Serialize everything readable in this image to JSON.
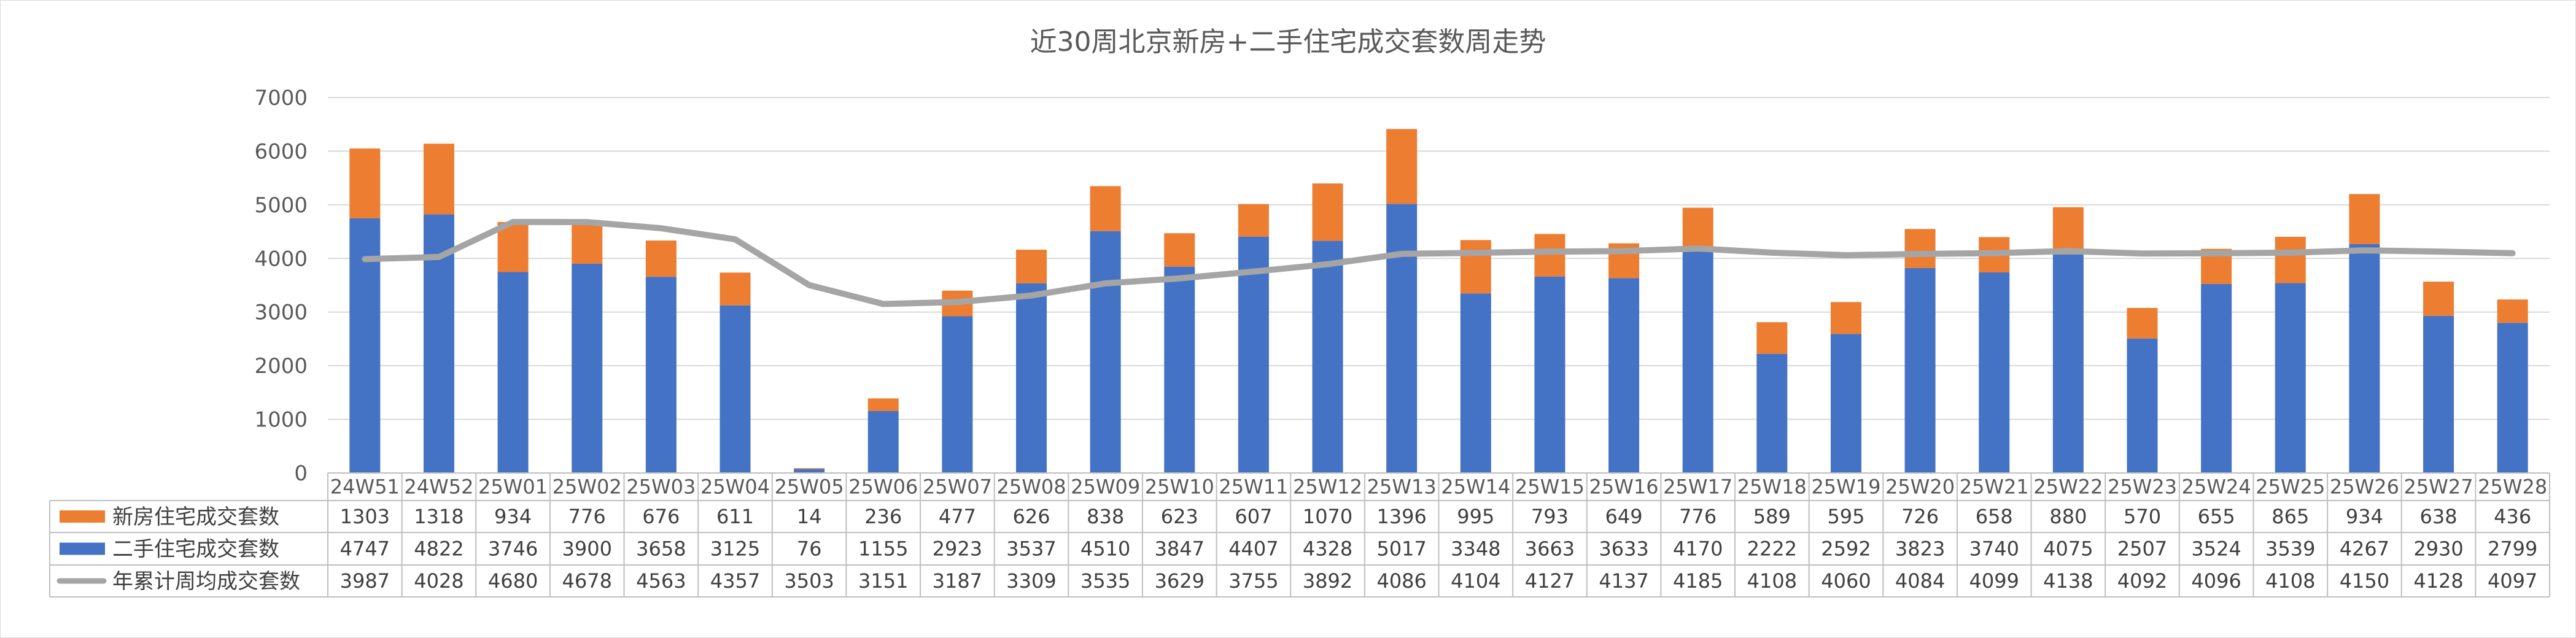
{
  "chart_data": {
    "type": "bar",
    "title": "近30周北京新房+二手住宅成交套数周走势",
    "ylim": [
      0,
      7000
    ],
    "yticks": [
      0,
      1000,
      2000,
      3000,
      4000,
      5000,
      6000,
      7000
    ],
    "grid": true,
    "legend": "data-table-left",
    "categories": [
      "24W51",
      "24W52",
      "25W01",
      "25W02",
      "25W03",
      "25W04",
      "25W05",
      "25W06",
      "25W07",
      "25W08",
      "25W09",
      "25W10",
      "25W11",
      "25W12",
      "25W13",
      "25W14",
      "25W15",
      "25W16",
      "25W17",
      "25W18",
      "25W19",
      "25W20",
      "25W21",
      "25W22",
      "25W23",
      "25W24",
      "25W25",
      "25W26",
      "25W27",
      "25W28"
    ],
    "series": [
      {
        "name": "新房住宅成交套数",
        "type": "stacked-bar",
        "color": "#ED7D31",
        "values": [
          1303,
          1318,
          934,
          776,
          676,
          611,
          14,
          236,
          477,
          626,
          838,
          623,
          607,
          1070,
          1396,
          995,
          793,
          649,
          776,
          589,
          595,
          726,
          658,
          880,
          570,
          655,
          865,
          934,
          638,
          436
        ]
      },
      {
        "name": "二手住宅成交套数",
        "type": "stacked-bar",
        "color": "#4472C4",
        "values": [
          4747,
          4822,
          3746,
          3900,
          3658,
          3125,
          76,
          1155,
          2923,
          3537,
          4510,
          3847,
          4407,
          4328,
          5017,
          3348,
          3663,
          3633,
          4170,
          2222,
          2592,
          3823,
          3740,
          4075,
          2507,
          3524,
          3539,
          4267,
          2930,
          2799
        ]
      },
      {
        "name": "年累计周均成交套数",
        "type": "line",
        "color": "#A5A5A5",
        "values": [
          3987,
          4028,
          4680,
          4678,
          4563,
          4357,
          3503,
          3151,
          3187,
          3309,
          3535,
          3629,
          3755,
          3892,
          4086,
          4104,
          4127,
          4137,
          4185,
          4108,
          4060,
          4084,
          4099,
          4138,
          4092,
          4096,
          4108,
          4150,
          4128,
          4097
        ]
      }
    ]
  }
}
